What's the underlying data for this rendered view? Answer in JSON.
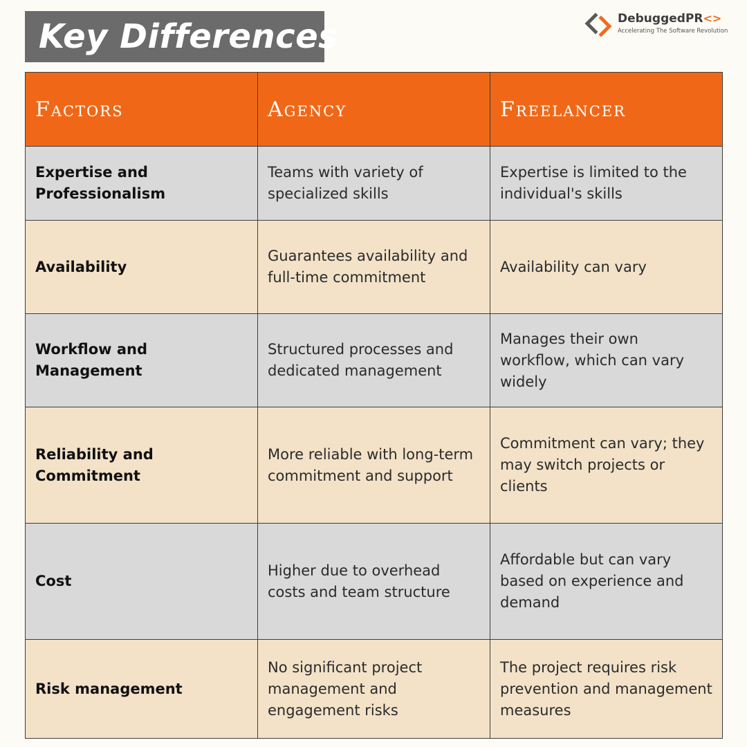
{
  "title": "Key Differences",
  "logo": {
    "name": "DebuggedPR",
    "code_suffix": "<>",
    "tagline": "Accelerating The Software Revolution",
    "mark_icon": "code-brackets-icon"
  },
  "colors": {
    "accent": "#f06817",
    "title_bg": "#6b6b6b",
    "row_gray": "#d9d9d9",
    "row_tan": "#f3e2c8"
  },
  "table": {
    "headers": [
      "Factors",
      "Agency",
      "Freelancer"
    ],
    "rows": [
      {
        "factor": "Expertise and Professionalism",
        "agency": "Teams with variety of specialized skills",
        "freelancer": "Expertise is limited to the individual's skills"
      },
      {
        "factor": "Availability",
        "agency": "Guarantees availability and full-time commitment",
        "freelancer": "Availability can vary"
      },
      {
        "factor": "Workflow and Management",
        "agency": "Structured processes and dedicated management",
        "freelancer": "Manages their own workflow, which can vary widely"
      },
      {
        "factor": "Reliability and Commitment",
        "agency": "More reliable with long-term commitment and support",
        "freelancer": "Commitment can vary; they may switch projects or clients"
      },
      {
        "factor": "Cost",
        "agency": "Higher due to overhead costs and team structure",
        "freelancer": "Affordable but can vary based on experience and demand"
      },
      {
        "factor": "Risk management",
        "agency": "No significant project management and engagement risks",
        "freelancer": "The project requires risk prevention and management measures"
      }
    ]
  }
}
